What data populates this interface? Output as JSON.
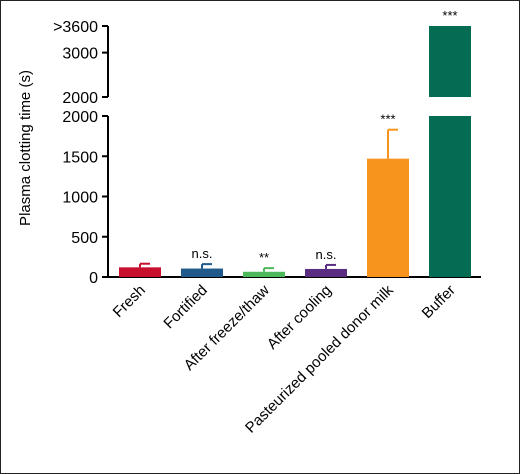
{
  "chart_data": {
    "type": "bar",
    "ylabel": "Plasma clotting time (s)",
    "categories": [
      "Fresh",
      "Fortified",
      "After freeze/thaw",
      "After cooling",
      "Pasteurized pooled donor milk",
      "Buffer"
    ],
    "values": [
      120,
      105,
      65,
      100,
      1470,
      3600
    ],
    "errors": [
      45,
      55,
      45,
      50,
      360,
      0
    ],
    "significance": [
      "",
      "n.s.",
      "**",
      "n.s.",
      "***",
      "***"
    ],
    "colors": [
      "#c8102e",
      "#1f5a8a",
      "#4cb85c",
      "#5a2d82",
      "#f7941d",
      "#056c54"
    ],
    "axis_break": true,
    "lower_ylim": [
      0,
      2000
    ],
    "lower_yticks": [
      "0",
      "500",
      "1000",
      "1500",
      "2000"
    ],
    "upper_yticks": [
      "2000",
      "3000",
      ">3600"
    ],
    "upper_ytick_values": [
      2000,
      3000,
      3600
    ]
  }
}
